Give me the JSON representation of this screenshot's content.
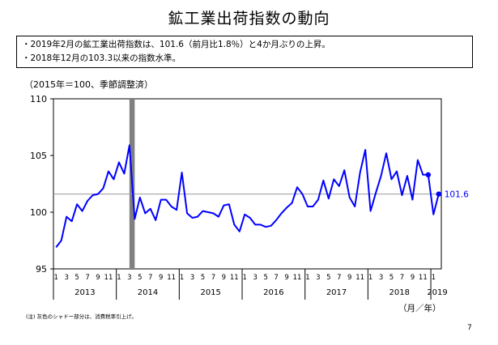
{
  "title": "鉱工業出荷指数の動向",
  "summary": [
    "・2019年2月の鉱工業出荷指数は、101.6（前月比1.8％）と4か月ぶりの上昇。",
    "・2018年12月の103.3以来の指数水準。"
  ],
  "base_note": "（2015年＝100、季節調整済）",
  "unit_note": "（月／年）",
  "footnote": "(注) 灰色のシャドー部分は、消費税率引上げ。",
  "page_number": "7",
  "colors": {
    "line": "#0000ff",
    "shade": "#808080",
    "ref_line": "#999999"
  },
  "chart_data": {
    "type": "line",
    "title": "鉱工業出荷指数の動向",
    "ylabel": "（2015年＝100、季節調整済）",
    "xlabel": "（月／年）",
    "ylim": [
      95,
      110
    ],
    "yticks": [
      95,
      100,
      105,
      110
    ],
    "grid": false,
    "month_labels": [
      "1",
      "3",
      "5",
      "7",
      "9",
      "11"
    ],
    "years": [
      "2013",
      "2014",
      "2015",
      "2016",
      "2017",
      "2018",
      "2019"
    ],
    "start": "2013-01",
    "series": [
      {
        "name": "",
        "values": [
          96.9,
          97.5,
          99.6,
          99.2,
          100.7,
          100.1,
          101.0,
          101.5,
          101.6,
          102.1,
          103.6,
          102.9,
          104.4,
          103.4,
          105.9,
          99.4,
          101.3,
          99.9,
          100.3,
          99.3,
          101.1,
          101.1,
          100.5,
          100.2,
          103.5,
          99.9,
          99.5,
          99.6,
          100.1,
          100.0,
          99.9,
          99.6,
          100.6,
          100.7,
          98.9,
          98.3,
          99.8,
          99.5,
          98.9,
          98.9,
          98.7,
          98.8,
          99.3,
          99.9,
          100.4,
          100.8,
          102.2,
          101.6,
          100.5,
          100.5,
          101.1,
          102.8,
          101.2,
          102.9,
          102.3,
          103.7,
          101.3,
          100.5,
          103.5,
          105.5,
          100.1,
          101.7,
          103.2,
          105.2,
          102.9,
          103.6,
          101.5,
          103.2,
          101.1,
          104.6,
          103.3,
          103.3,
          99.8,
          101.6
        ]
      }
    ],
    "shade": {
      "from": "2014-03",
      "to": "2014-04"
    },
    "reference_line": 101.6,
    "last_point": {
      "period": "2019-02",
      "value": 101.6,
      "label": "101.6"
    },
    "marked_point": {
      "period": "2018-12",
      "value": 103.3
    }
  }
}
